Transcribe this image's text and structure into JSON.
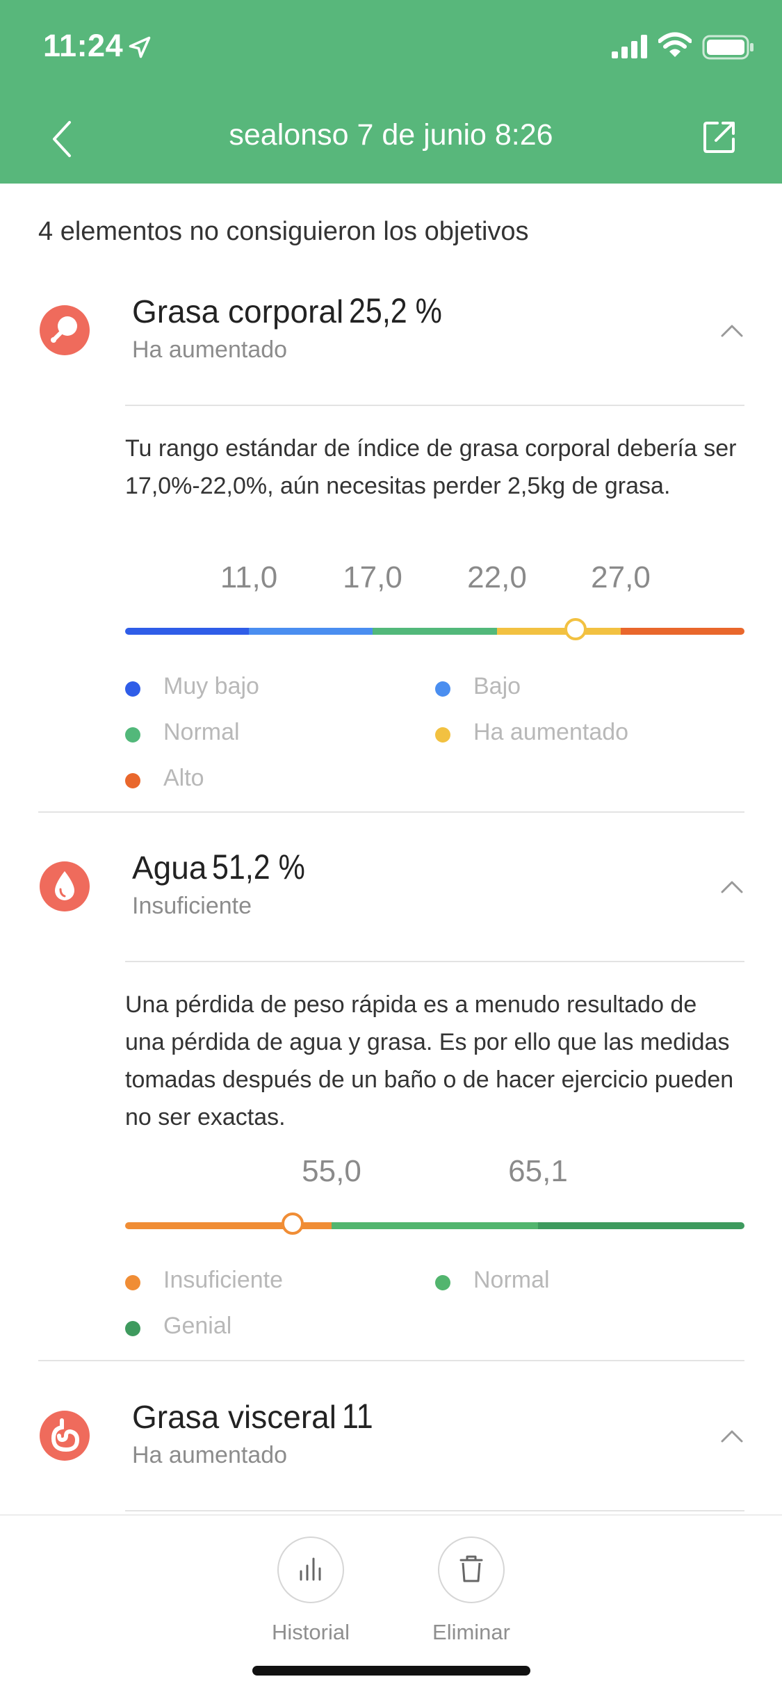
{
  "status_bar": {
    "time": "11:24"
  },
  "nav": {
    "title": "sealonso 7 de junio 8:26"
  },
  "summary": "4 elementos no consiguieron los objetivos",
  "colors": {
    "brand": "#58b77b",
    "metric_icon": "#ef6b5c"
  },
  "metrics": [
    {
      "name": "Grasa corporal",
      "value": "25,2",
      "unit": "%",
      "status": "Ha aumentado",
      "icon": "drumstick-icon",
      "description": "Tu rango estándar de índice de grasa corporal debería ser 17,0%-22,0%, aún necesitas perder 2,5kg de grasa.",
      "ticks": [
        "11,0",
        "17,0",
        "22,0",
        "27,0"
      ],
      "indicator_fraction": 0.727,
      "legend": [
        {
          "label": "Muy bajo",
          "color": "#2f5de8"
        },
        {
          "label": "Bajo",
          "color": "#4a8ef0"
        },
        {
          "label": "Normal",
          "color": "#52b87a"
        },
        {
          "label": "Ha aumentado",
          "color": "#f2c141"
        },
        {
          "label": "Alto",
          "color": "#e9672c"
        }
      ]
    },
    {
      "name": "Agua",
      "value": "51,2",
      "unit": "%",
      "status": "Insuficiente",
      "icon": "water-drop-icon",
      "description": "Una pérdida de peso rápida es a menudo resultado de una pérdida de agua y grasa. Es por ello que las medidas tomadas después de un baño o de hacer ejercicio pueden no ser exactas.",
      "ticks": [
        "55,0",
        "65,1"
      ],
      "indicator_fraction": 0.27,
      "legend": [
        {
          "label": "Insuficiente",
          "color": "#f08d35"
        },
        {
          "label": "Normal",
          "color": "#52b56e"
        },
        {
          "label": "Genial",
          "color": "#3e9a5e"
        }
      ]
    },
    {
      "name": "Grasa visceral",
      "value": "11",
      "unit": "",
      "status": "Ha aumentado",
      "icon": "stomach-icon"
    }
  ],
  "bottom_bar": {
    "history_label": "Historial",
    "delete_label": "Eliminar"
  }
}
